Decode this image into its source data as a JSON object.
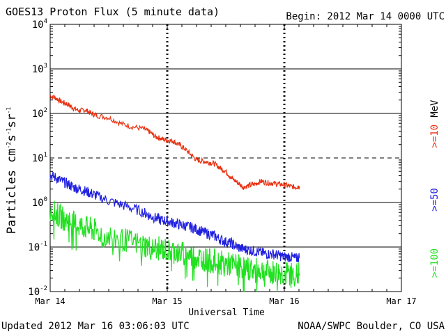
{
  "header": {
    "title": "GOES13 Proton Flux (5 minute data)",
    "begin": "Begin: 2012 Mar 14 0000 UTC"
  },
  "footer": {
    "updated": "Updated 2012 Mar 16 03:06:03 UTC",
    "credit": "NOAA/SWPC Boulder, CO USA"
  },
  "chart_data": {
    "type": "line",
    "title": "GOES13 Proton Flux (5 minute data)",
    "xlabel": "Universal Time",
    "ylabel_main": "Particles cm",
    "ylabel_exp1": "-2",
    "ylabel_mid": "s",
    "ylabel_exp2": "-1",
    "ylabel_mid2": "sr",
    "ylabel_exp3": "-1",
    "y_scale": "log",
    "ylim": [
      0.01,
      10000
    ],
    "xlim_days": [
      0,
      3
    ],
    "x_ticks": [
      "Mar 14",
      "Mar 15",
      "Mar 16",
      "Mar 17"
    ],
    "y_ticks": [
      {
        "base": "10",
        "exp": "4"
      },
      {
        "base": "10",
        "exp": "3"
      },
      {
        "base": "10",
        "exp": "2"
      },
      {
        "base": "10",
        "exp": "1"
      },
      {
        "base": "10",
        "exp": "0"
      },
      {
        "base": "10",
        "exp": "-1"
      },
      {
        "base": "10",
        "exp": "-2"
      }
    ],
    "thresholds": [
      10,
      1
    ],
    "series": [
      {
        "name": ">=10 MeV",
        "label": ">=10",
        "unit": "MeV",
        "color": "#e83010",
        "x": [
          0,
          0.05,
          0.1,
          0.15,
          0.2,
          0.25,
          0.3,
          0.35,
          0.4,
          0.5,
          0.6,
          0.7,
          0.8,
          0.85,
          0.9,
          0.95,
          1.0,
          1.05,
          1.1,
          1.15,
          1.2,
          1.25,
          1.3,
          1.35,
          1.4,
          1.45,
          1.5,
          1.55,
          1.6,
          1.65,
          1.7,
          1.75,
          1.8,
          1.85,
          1.9,
          1.95,
          2.0,
          2.05,
          2.1,
          2.13
        ],
        "y": [
          250,
          220,
          180,
          160,
          130,
          115,
          120,
          100,
          90,
          80,
          60,
          50,
          45,
          38,
          30,
          27,
          25,
          24,
          20,
          16,
          12,
          9,
          8.5,
          8,
          7.5,
          6,
          5,
          3.5,
          2.8,
          2.2,
          2.4,
          2.6,
          3.0,
          2.8,
          2.7,
          2.6,
          2.5,
          2.3,
          2.2,
          2.3
        ]
      },
      {
        "name": ">=50 MeV",
        "label": ">=50",
        "unit": "",
        "color": "#2020e0",
        "x": [
          0,
          0.05,
          0.1,
          0.15,
          0.2,
          0.25,
          0.3,
          0.35,
          0.4,
          0.5,
          0.6,
          0.7,
          0.8,
          0.85,
          0.9,
          0.95,
          1.0,
          1.05,
          1.1,
          1.15,
          1.2,
          1.25,
          1.3,
          1.35,
          1.4,
          1.45,
          1.5,
          1.55,
          1.6,
          1.65,
          1.7,
          1.75,
          1.8,
          1.85,
          1.9,
          1.95,
          2.0,
          2.05,
          2.1,
          2.13
        ],
        "y": [
          4.0,
          3.6,
          3.0,
          2.6,
          2.2,
          2.0,
          1.8,
          1.6,
          1.4,
          1.1,
          0.9,
          0.75,
          0.6,
          0.5,
          0.45,
          0.4,
          0.38,
          0.35,
          0.32,
          0.3,
          0.28,
          0.25,
          0.22,
          0.2,
          0.18,
          0.15,
          0.13,
          0.12,
          0.1,
          0.09,
          0.085,
          0.08,
          0.075,
          0.07,
          0.07,
          0.065,
          0.06,
          0.06,
          0.055,
          0.06
        ]
      },
      {
        "name": ">=100 MeV",
        "label": ">=100",
        "unit": "",
        "color": "#20e020",
        "x": [
          0,
          0.05,
          0.1,
          0.15,
          0.2,
          0.25,
          0.3,
          0.35,
          0.4,
          0.5,
          0.6,
          0.7,
          0.8,
          0.85,
          0.9,
          0.95,
          1.0,
          1.05,
          1.1,
          1.15,
          1.2,
          1.25,
          1.3,
          1.35,
          1.4,
          1.45,
          1.5,
          1.55,
          1.6,
          1.65,
          1.7,
          1.75,
          1.8,
          1.85,
          1.9,
          1.95,
          2.0,
          2.05,
          2.1,
          2.13
        ],
        "y": [
          0.7,
          0.55,
          0.45,
          0.4,
          0.35,
          0.3,
          0.28,
          0.25,
          0.22,
          0.18,
          0.15,
          0.13,
          0.11,
          0.1,
          0.095,
          0.09,
          0.085,
          0.08,
          0.075,
          0.07,
          0.065,
          0.06,
          0.055,
          0.05,
          0.048,
          0.045,
          0.042,
          0.04,
          0.038,
          0.035,
          0.033,
          0.03,
          0.03,
          0.028,
          0.027,
          0.026,
          0.025,
          0.025,
          0.024,
          0.025
        ]
      }
    ]
  }
}
